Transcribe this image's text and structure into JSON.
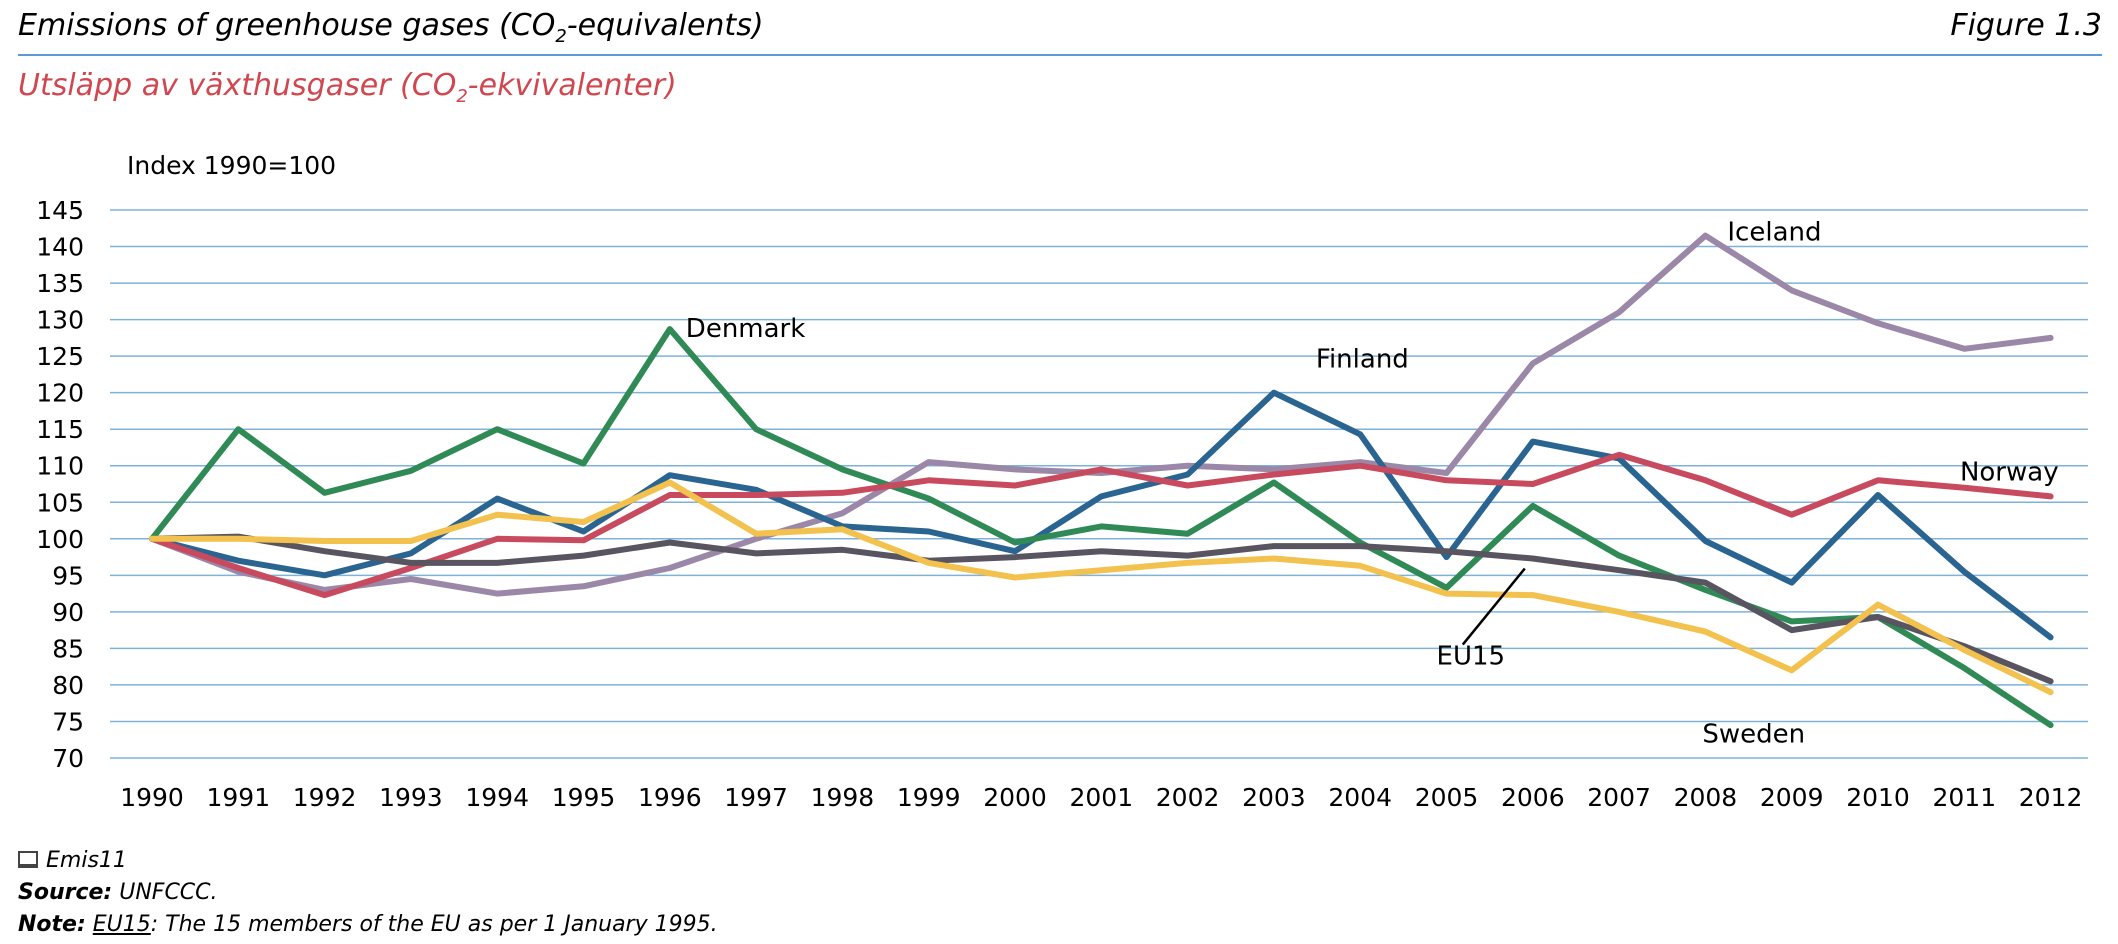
{
  "header": {
    "title_en_pre": "Emissions of greenhouse gases (CO",
    "title_en_sub": "2",
    "title_en_post": "-equivalents)",
    "figure_no": "Figure 1.3",
    "title_sv_pre": "Utsläpp av växthusgaser (CO",
    "title_sv_sub": "2",
    "title_sv_post": "-ekvivalenter)"
  },
  "colors": {
    "accent_rule": "#5b9bd5",
    "title_sv": "#d0474f",
    "gridline": "#7fb2d9"
  },
  "chart_data": {
    "type": "line",
    "ylabel": "Index 1990=100",
    "xlabel": "",
    "ylim": [
      70,
      145
    ],
    "yticks": [
      70,
      75,
      80,
      85,
      90,
      95,
      100,
      105,
      110,
      115,
      120,
      125,
      130,
      135,
      140,
      145
    ],
    "grid": true,
    "x": [
      "1990",
      "1991",
      "1992",
      "1993",
      "1994",
      "1995",
      "1996",
      "1997",
      "1998",
      "1999",
      "2000",
      "2001",
      "2002",
      "2003",
      "2004",
      "2005",
      "2006",
      "2007",
      "2008",
      "2009",
      "2010",
      "2011",
      "2012"
    ],
    "series": [
      {
        "name": "Iceland",
        "color": "#9b88a8",
        "values": [
          100,
          95.5,
          93,
          94.5,
          92.5,
          93.5,
          96,
          100,
          103.5,
          110.5,
          109.5,
          109,
          110,
          109.5,
          110.5,
          109,
          124,
          131,
          141.5,
          134,
          129.5,
          126,
          127.5
        ]
      },
      {
        "name": "Finland",
        "color": "#2a6490",
        "values": [
          100,
          97,
          95,
          98,
          105.5,
          101,
          108.7,
          106.7,
          101.7,
          101,
          98.3,
          105.8,
          108.8,
          120,
          114.3,
          97.5,
          113.3,
          111,
          99.7,
          94,
          106,
          95.5,
          86.5
        ]
      },
      {
        "name": "Denmark",
        "color": "#2f8a55",
        "values": [
          100,
          115,
          106.3,
          109.3,
          115,
          110.3,
          128.7,
          115,
          109.5,
          105.5,
          99.5,
          101.7,
          100.7,
          107.7,
          99.5,
          93.3,
          104.5,
          97.7,
          93,
          88.7,
          89.3,
          82.3,
          74.5
        ]
      },
      {
        "name": "Norway",
        "color": "#c84a5e",
        "values": [
          100,
          96,
          92.3,
          96,
          100,
          99.8,
          106,
          106,
          106.3,
          108,
          107.3,
          109.5,
          107.3,
          108.8,
          110,
          108,
          107.5,
          111.5,
          108,
          103.3,
          108,
          107,
          105.8
        ]
      },
      {
        "name": "EU15",
        "color": "#595560",
        "values": [
          100,
          100.3,
          98.3,
          96.7,
          96.7,
          97.7,
          99.5,
          98,
          98.5,
          97,
          97.5,
          98.3,
          97.7,
          99,
          99,
          98.3,
          97.3,
          95.7,
          94,
          87.5,
          89.3,
          85.3,
          80.5
        ]
      },
      {
        "name": "Sweden",
        "color": "#f2c14e",
        "values": [
          100,
          100,
          99.7,
          99.7,
          103.3,
          102.3,
          107.7,
          100.7,
          101.3,
          96.7,
          94.7,
          95.7,
          96.7,
          97.3,
          96.3,
          92.5,
          92.3,
          90,
          87.3,
          82,
          91,
          84.8,
          79
        ]
      }
    ],
    "annotations": [
      {
        "text": "Iceland",
        "series": "Iceland"
      },
      {
        "text": "Denmark",
        "series": "Denmark"
      },
      {
        "text": "Finland",
        "series": "Finland"
      },
      {
        "text": "Norway",
        "series": "Norway"
      },
      {
        "text": "EU15",
        "series": "EU15"
      },
      {
        "text": "Sweden",
        "series": "Sweden"
      }
    ]
  },
  "footer": {
    "ref": "Emis11",
    "source_label": "Source:",
    "source_text": " UNFCCC.",
    "note_label": "Note:",
    "note_term": "EU15",
    "note_text": ": The 15 members of the EU as per 1 January 1995."
  }
}
